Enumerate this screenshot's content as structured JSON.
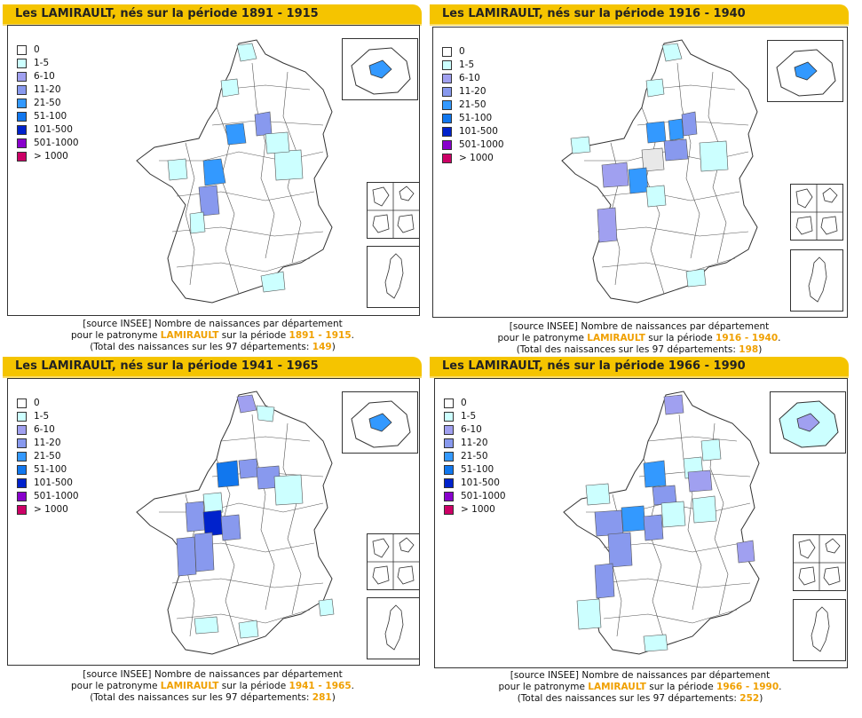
{
  "legend": {
    "items": [
      {
        "label": "0",
        "color": "#ffffff"
      },
      {
        "label": "1-5",
        "color": "#ccffff"
      },
      {
        "label": "6-10",
        "color": "#a0a0f0"
      },
      {
        "label": "11-20",
        "color": "#8899ee"
      },
      {
        "label": "21-50",
        "color": "#3399ff"
      },
      {
        "label": "51-100",
        "color": "#1177ee"
      },
      {
        "label": "101-500",
        "color": "#0022cc"
      },
      {
        "label": "501-1000",
        "color": "#8800cc"
      },
      {
        "label": "> 1000",
        "color": "#cc0066"
      }
    ]
  },
  "source": {
    "line1": "[source INSEE] Nombre de naissances par département",
    "line2_prefix": "pour le patronyme ",
    "name": "LAMIRAULT",
    "line2_mid": " sur la période ",
    "line2_suffix": ".",
    "line3_prefix": "(Total des naissances sur les 97 départements: ",
    "line3_suffix": ")"
  },
  "panels": [
    {
      "title": "Les LAMIRAULT, nés sur la période 1891 - 1915",
      "period": "1891 - 1915",
      "total": "149"
    },
    {
      "title": "Les LAMIRAULT, nés sur la période 1916 - 1940",
      "period": "1916 - 1940",
      "total": "198"
    },
    {
      "title": "Les LAMIRAULT, nés sur la période 1941 - 1965",
      "period": "1941 - 1965",
      "total": "281"
    },
    {
      "title": "Les LAMIRAULT, nés sur la période 1966 - 1990",
      "period": "1966 - 1990",
      "total": "252"
    }
  ]
}
